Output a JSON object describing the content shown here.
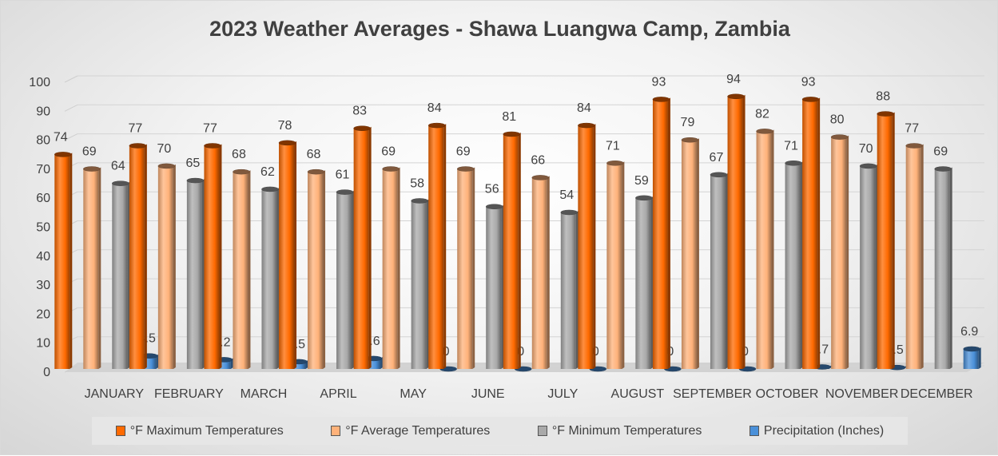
{
  "chart_data": {
    "type": "bar",
    "title": "2023 Weather Averages - Shawa Luangwa Camp, Zambia",
    "xlabel": "",
    "ylabel": "",
    "ylim": [
      0,
      100
    ],
    "yticks": [
      0,
      10,
      20,
      30,
      40,
      50,
      60,
      70,
      80,
      90,
      100
    ],
    "grid": true,
    "legend_position": "bottom",
    "three_d": true,
    "categories": [
      "JANUARY",
      "FEBRUARY",
      "MARCH",
      "APRIL",
      "MAY",
      "JUNE",
      "JULY",
      "AUGUST",
      "SEPTEMBER",
      "OCTOBER",
      "NOVEMBER",
      "DECEMBER"
    ],
    "series": [
      {
        "name": "°F Maximum Temperatures",
        "color": "#ff6a00",
        "values": [
          74,
          77,
          77,
          78,
          83,
          84,
          81,
          84,
          93,
          94,
          93,
          88
        ],
        "labels": [
          "74",
          "77",
          "77",
          "78",
          "83",
          "84",
          "81",
          "84",
          "93",
          "94",
          "93",
          "88"
        ]
      },
      {
        "name": "°F Average Temperatures",
        "color": "#ffb27a",
        "values": [
          69,
          70,
          68,
          68,
          69,
          69,
          66,
          71,
          79,
          82,
          80,
          77
        ],
        "labels": [
          "69",
          "70",
          "68",
          "68",
          "69",
          "69",
          "66",
          "71",
          "79",
          "82",
          "80",
          "77"
        ]
      },
      {
        "name": "°F Minimum Temperatures",
        "color": "#a9a9a9",
        "values": [
          64,
          65,
          62,
          61,
          58,
          56,
          54,
          59,
          67,
          71,
          70,
          69
        ],
        "labels": [
          "64",
          "65",
          "62",
          "61",
          "58",
          "56",
          "54",
          "59",
          "67",
          "71",
          "70",
          "69"
        ]
      },
      {
        "name": "Precipitation (Inches)",
        "color": "#4a90d9",
        "values": [
          4.5,
          3.2,
          2.5,
          3.6,
          0,
          0,
          0,
          0,
          0,
          0.7,
          0.5,
          6.9
        ],
        "labels": [
          "4.5",
          "3.2",
          "2.5",
          "3.6",
          "0",
          "0",
          "0",
          "0",
          "0",
          "0.7",
          "0.5",
          "6.9"
        ]
      }
    ]
  }
}
